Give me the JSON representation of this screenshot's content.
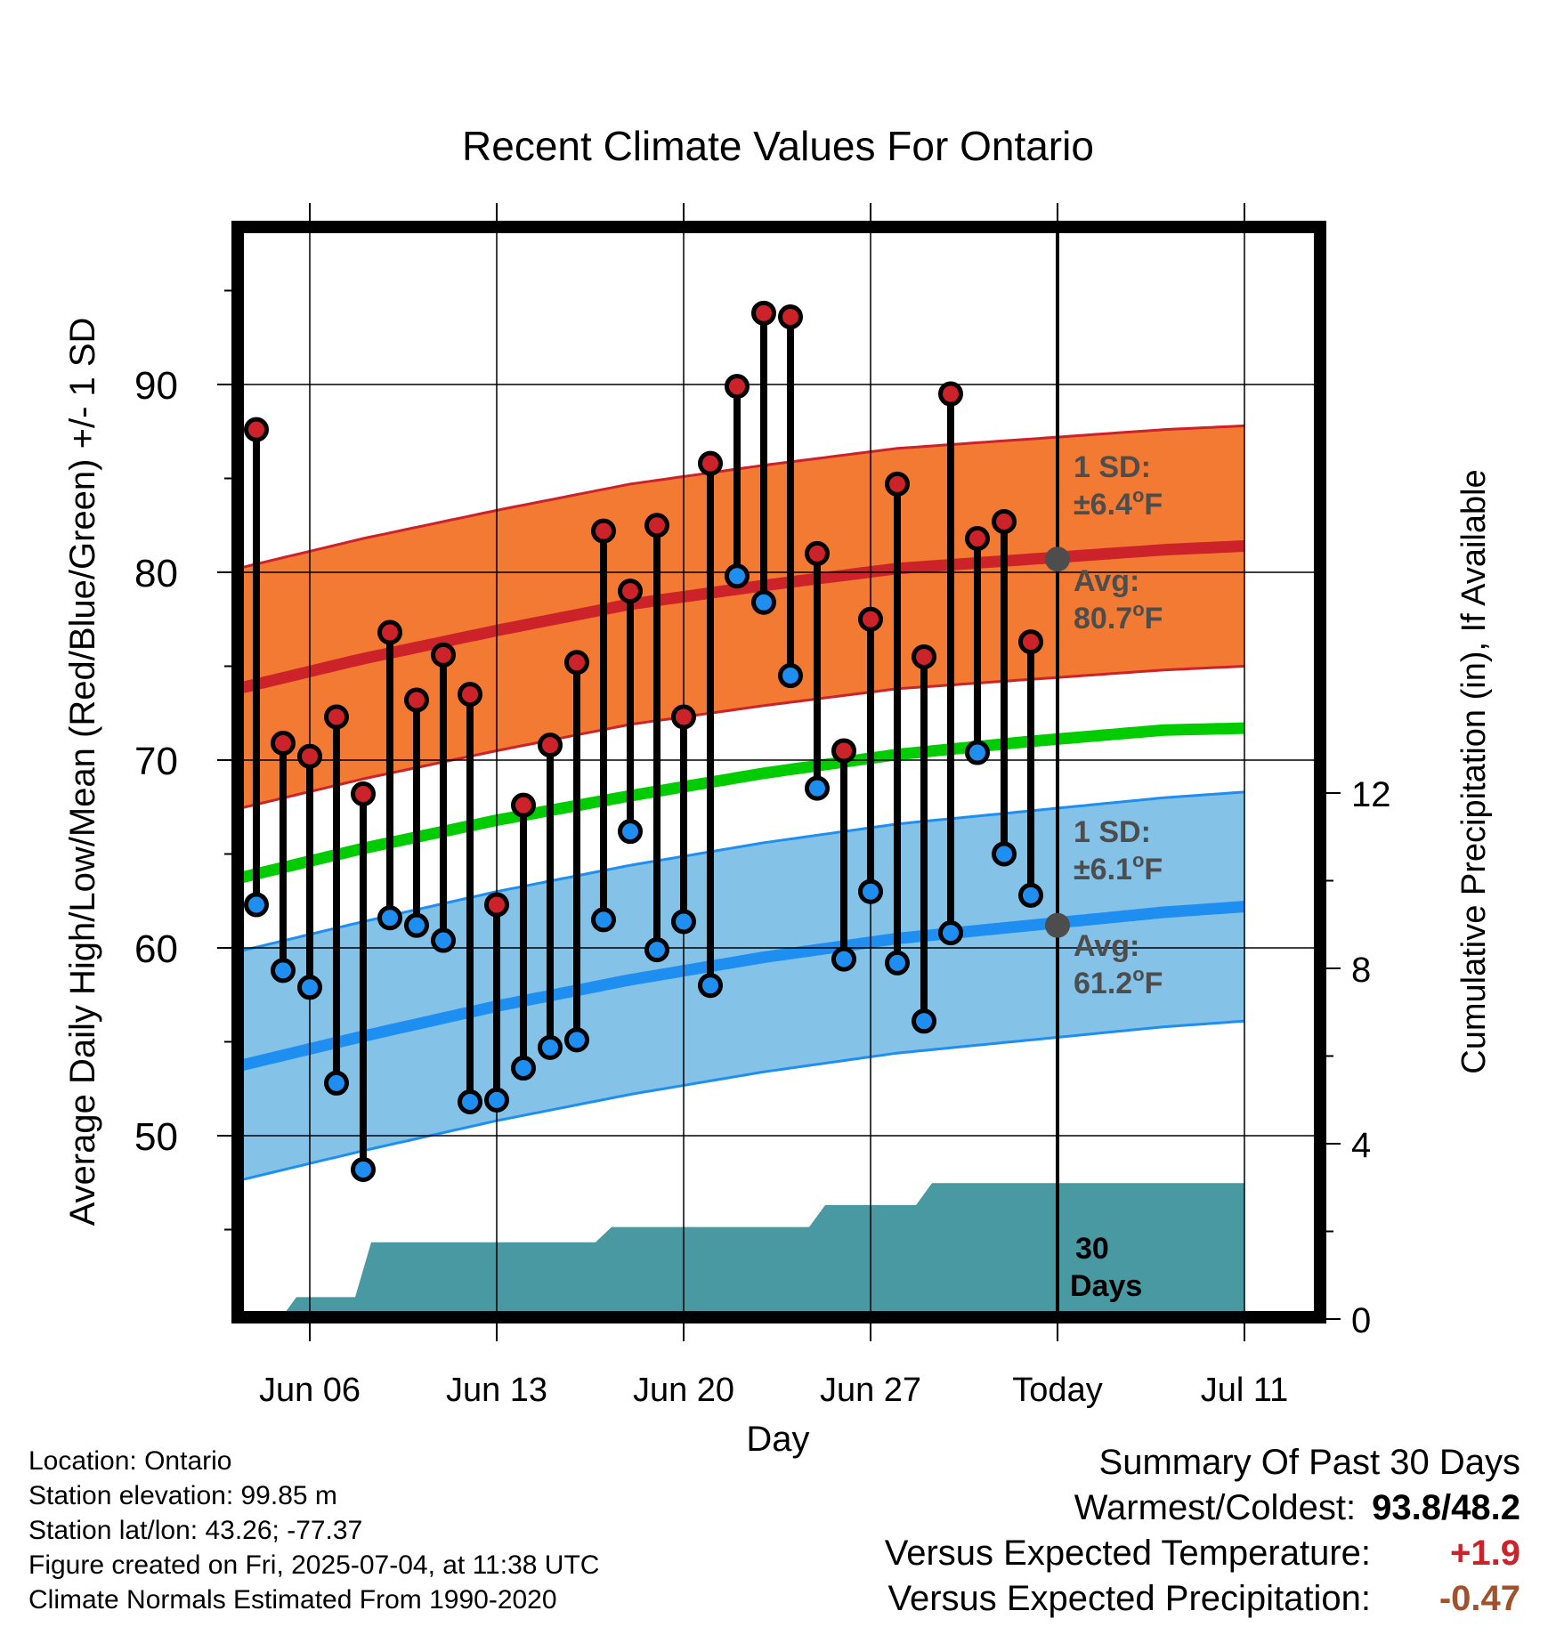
{
  "chart_data": {
    "type": "line",
    "title": "Recent Climate Values For Ontario",
    "xlabel": "Day",
    "ylabel": "Average Daily High/Low/Mean (Red/Blue/Green) +/- 1 SD",
    "y2label": "Cumulative Precipitation (in), If Available",
    "ylim": [
      40,
      98
    ],
    "y2lim": [
      0,
      16.5
    ],
    "yticks": [
      50,
      60,
      70,
      80,
      90
    ],
    "y2ticks": [
      0,
      4,
      8,
      12
    ],
    "xlim": [
      3,
      40
    ],
    "x_ticks": [
      {
        "x": 6,
        "label": "Jun 06"
      },
      {
        "x": 13,
        "label": "Jun 13"
      },
      {
        "x": 20,
        "label": "Jun 20"
      },
      {
        "x": 27,
        "label": "Jun 27"
      },
      {
        "x": 34,
        "label": "Today"
      },
      {
        "x": 41,
        "label": "Jul 11"
      }
    ],
    "today_x": 34,
    "days": [
      4,
      5,
      6,
      7,
      8,
      9,
      10,
      11,
      12,
      13,
      14,
      15,
      16,
      17,
      18,
      19,
      20,
      21,
      22,
      23,
      24,
      25,
      26,
      27,
      28,
      29,
      30,
      31,
      32,
      33
    ],
    "daily_high": [
      87.6,
      70.9,
      70.2,
      72.3,
      68.2,
      76.8,
      73.2,
      75.6,
      73.5,
      62.3,
      67.6,
      70.8,
      75.2,
      82.2,
      79.0,
      82.5,
      72.3,
      85.8,
      89.9,
      93.8,
      93.6,
      81.0,
      70.5,
      77.5,
      84.7,
      75.5,
      89.5,
      81.8,
      82.7,
      76.3
    ],
    "daily_low": [
      62.3,
      58.8,
      57.9,
      52.8,
      48.2,
      61.6,
      61.2,
      60.4,
      51.8,
      51.9,
      53.6,
      54.7,
      55.1,
      61.5,
      66.2,
      59.9,
      61.4,
      58.0,
      79.8,
      78.4,
      74.5,
      68.5,
      59.4,
      63.0,
      59.2,
      56.1,
      60.8,
      70.4,
      65.0,
      62.8
    ],
    "normals": {
      "x": [
        3,
        8,
        13,
        18,
        23,
        28,
        33,
        38,
        41
      ],
      "avg_high": [
        73.7,
        75.4,
        76.9,
        78.3,
        79.3,
        80.2,
        80.7,
        81.2,
        81.4
      ],
      "avg_mean": [
        63.6,
        65.3,
        66.8,
        68.1,
        69.3,
        70.3,
        71.0,
        71.6,
        71.7
      ],
      "avg_low": [
        53.6,
        55.3,
        56.9,
        58.3,
        59.5,
        60.5,
        61.2,
        61.9,
        62.2
      ],
      "sd_high": 6.4,
      "sd_low": 6.1
    },
    "precip_cumulative": {
      "x": [
        3.5,
        4.9,
        5.3,
        7.3,
        8.3,
        37.0,
        41
      ],
      "values": [
        0,
        0,
        0.5,
        0.5,
        1.75,
        3.1,
        3.1
      ],
      "steps": [
        {
          "x": 5.2,
          "value": 0.5
        },
        {
          "x": 8.0,
          "value": 1.75
        },
        {
          "x": 17.0,
          "value": 2.1
        },
        {
          "x": 25.0,
          "value": 2.6
        },
        {
          "x": 29.0,
          "value": 3.1
        }
      ]
    },
    "annotations": {
      "high_sd": {
        "line1": "1 SD:",
        "line2": "±6.4",
        "unit": "F"
      },
      "high_avg": {
        "line1": "Avg:",
        "line2": "80.7",
        "unit": "F"
      },
      "low_sd": {
        "line1": "1 SD:",
        "line2": "±6.1",
        "unit": "F"
      },
      "low_avg": {
        "line1": "Avg:",
        "line2": "61.2",
        "unit": "F"
      },
      "degree_symbol": "o",
      "precip_days": {
        "line1": "30",
        "line2": "Days"
      }
    },
    "colors": {
      "high_band": "#f27a32",
      "high_line": "#cc2229",
      "low_band": "#84c2e8",
      "low_line": "#1e8ef0",
      "mean_line": "#00cc00",
      "precip": "#4899a2",
      "high_dot": "#cc2229",
      "low_dot": "#1e8ef0",
      "marker_today": "#4d4d4d",
      "annotation_text": "#4d4d4d"
    }
  },
  "footer": {
    "location": "Location: Ontario",
    "elevation": "Station elevation: 99.85 m",
    "latlon": "Station lat/lon: 43.26; -77.37",
    "created": "Figure created on Fri, 2025-07-04, at 11:38 UTC",
    "normals": "Climate Normals Estimated From 1990-2020"
  },
  "summary": {
    "heading": "Summary Of Past 30 Days",
    "warm_cold_label": "Warmest/Coldest:",
    "warmest": "93.8",
    "coldest": "48.2",
    "temp_label": "Versus Expected Temperature:",
    "temp_value": "+1.9",
    "temp_color": "#cc2229",
    "precip_label": "Versus Expected Precipitation:",
    "precip_value": "-0.47",
    "precip_color": "#a0522d"
  }
}
